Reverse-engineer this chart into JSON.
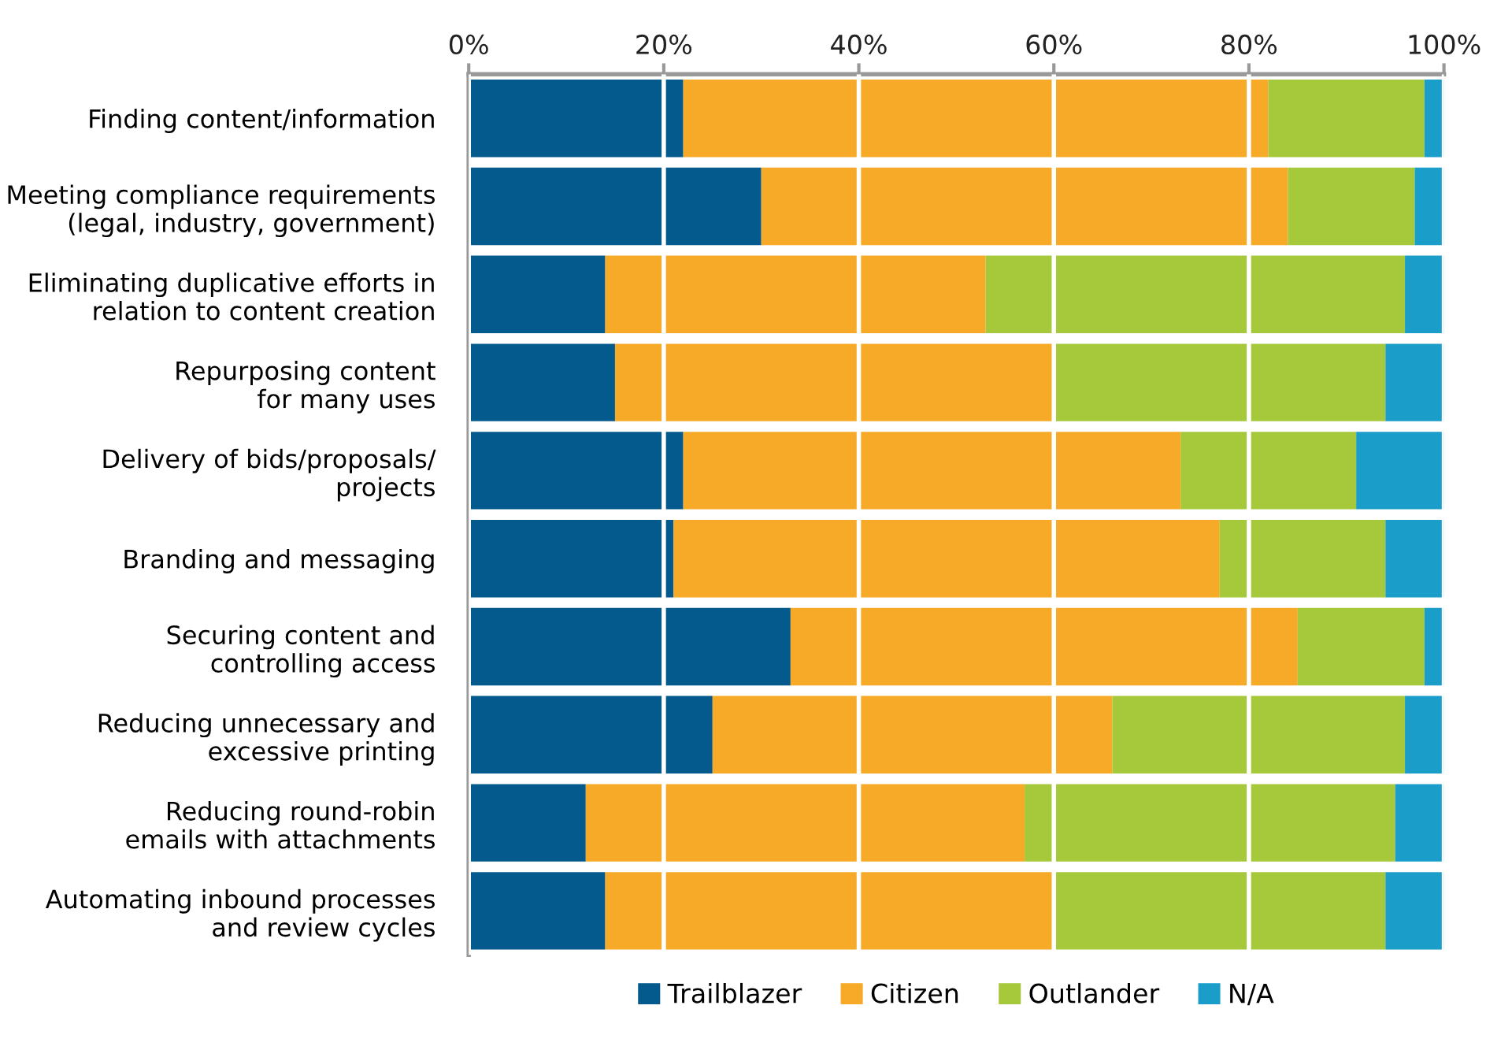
{
  "chart_data": {
    "type": "bar",
    "orientation": "horizontal",
    "stacked": true,
    "categories": [
      "Finding content/information",
      "Meeting compliance requirements\n(legal, industry, government)",
      "Eliminating duplicative efforts in\nrelation to content creation",
      "Repurposing content\nfor many uses",
      "Delivery of bids/proposals/\nprojects",
      "Branding and messaging",
      "Securing content and\ncontrolling access",
      "Reducing unnecessary and\nexcessive printing",
      "Reducing round-robin\nemails with attachments",
      "Automating inbound processes\nand review cycles"
    ],
    "series": [
      {
        "name": "Trailblazer",
        "color": "#045a8d",
        "values": [
          22,
          30,
          14,
          15,
          22,
          21,
          33,
          25,
          12,
          14
        ]
      },
      {
        "name": "Citizen",
        "color": "#f7a928",
        "values": [
          60,
          54,
          39,
          45,
          51,
          56,
          52,
          41,
          45,
          46
        ]
      },
      {
        "name": "Outlander",
        "color": "#a6c93c",
        "values": [
          16,
          13,
          43,
          34,
          18,
          17,
          13,
          30,
          38,
          34
        ]
      },
      {
        "name": "N/A",
        "color": "#1a9ec9",
        "values": [
          2,
          3,
          4,
          6,
          9,
          6,
          2,
          4,
          5,
          6
        ]
      }
    ],
    "xlim": [
      0,
      100
    ],
    "xticks": [
      {
        "value": 0,
        "label": "0%"
      },
      {
        "value": 20,
        "label": "20%"
      },
      {
        "value": 40,
        "label": "40%"
      },
      {
        "value": 60,
        "label": "60%"
      },
      {
        "value": 80,
        "label": "80%"
      },
      {
        "value": 100,
        "label": "100%"
      }
    ],
    "grid": "x",
    "legend": "bottom"
  }
}
